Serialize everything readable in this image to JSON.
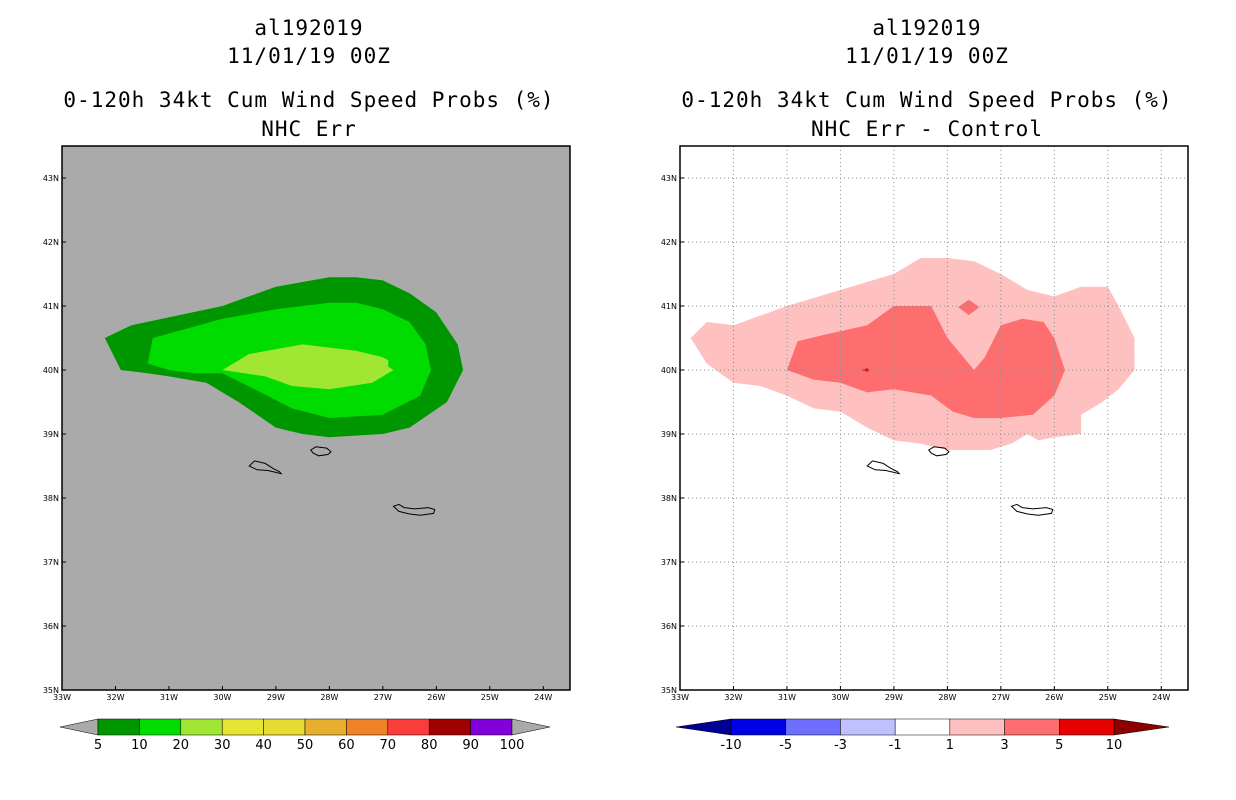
{
  "chart_data": [
    {
      "type": "heatmap",
      "title_lines": [
        "al192019",
        "11/01/19 00Z",
        "0-120h 34kt Cum Wind Speed Probs (%)",
        "NHC Err"
      ],
      "xlabel": "",
      "ylabel": "",
      "xlim": [
        -33,
        -23.5
      ],
      "ylim": [
        35,
        43.5
      ],
      "x_ticks": [
        -33,
        -32,
        -31,
        -30,
        -29,
        -28,
        -27,
        -26,
        -25,
        -24
      ],
      "x_tick_labels": [
        "33W",
        "32W",
        "31W",
        "30W",
        "29W",
        "28W",
        "27W",
        "26W",
        "25W",
        "24W"
      ],
      "y_ticks": [
        35,
        36,
        37,
        38,
        39,
        40,
        41,
        42,
        43
      ],
      "y_tick_labels": [
        "35N",
        "36N",
        "37N",
        "38N",
        "39N",
        "40N",
        "41N",
        "42N",
        "43N"
      ],
      "grid": false,
      "background_color": "#aaaaaa",
      "levels": [
        {
          "threshold": 5,
          "color": "#009600",
          "polygon": [
            [
              -32.2,
              40.5
            ],
            [
              -31.7,
              40.7
            ],
            [
              -30.0,
              41.0
            ],
            [
              -29.0,
              41.3
            ],
            [
              -28.0,
              41.45
            ],
            [
              -27.5,
              41.45
            ],
            [
              -27.0,
              41.4
            ],
            [
              -26.5,
              41.2
            ],
            [
              -26.0,
              40.9
            ],
            [
              -25.6,
              40.4
            ],
            [
              -25.5,
              40.0
            ],
            [
              -25.8,
              39.5
            ],
            [
              -26.5,
              39.1
            ],
            [
              -27.0,
              39.0
            ],
            [
              -28.0,
              38.95
            ],
            [
              -28.5,
              39.0
            ],
            [
              -29.0,
              39.1
            ],
            [
              -29.7,
              39.5
            ],
            [
              -30.3,
              39.8
            ],
            [
              -31.0,
              39.9
            ],
            [
              -31.4,
              39.95
            ],
            [
              -31.9,
              40.0
            ],
            [
              -32.2,
              40.5
            ]
          ]
        },
        {
          "threshold": 10,
          "color": "#00dc00",
          "polygon": [
            [
              -31.3,
              40.5
            ],
            [
              -30.0,
              40.8
            ],
            [
              -29.0,
              40.95
            ],
            [
              -28.0,
              41.05
            ],
            [
              -27.5,
              41.05
            ],
            [
              -27.0,
              40.95
            ],
            [
              -26.5,
              40.75
            ],
            [
              -26.2,
              40.4
            ],
            [
              -26.1,
              40.0
            ],
            [
              -26.3,
              39.6
            ],
            [
              -27.0,
              39.3
            ],
            [
              -28.0,
              39.25
            ],
            [
              -28.7,
              39.4
            ],
            [
              -29.4,
              39.7
            ],
            [
              -30.0,
              39.95
            ],
            [
              -30.5,
              39.95
            ],
            [
              -31.0,
              40.0
            ],
            [
              -31.4,
              40.1
            ],
            [
              -31.3,
              40.5
            ]
          ]
        },
        {
          "threshold": 20,
          "color": "#a0e632",
          "polygon": [
            [
              -30.0,
              40.0
            ],
            [
              -29.5,
              40.25
            ],
            [
              -28.5,
              40.4
            ],
            [
              -27.5,
              40.3
            ],
            [
              -27.0,
              40.2
            ],
            [
              -26.9,
              40.15
            ],
            [
              -26.9,
              40.05
            ],
            [
              -26.8,
              40.0
            ],
            [
              -27.2,
              39.8
            ],
            [
              -28.0,
              39.7
            ],
            [
              -28.7,
              39.75
            ],
            [
              -29.2,
              39.9
            ],
            [
              -30.0,
              40.0
            ]
          ]
        }
      ],
      "islands": [
        {
          "name": "",
          "outline": [
            [
              -29.5,
              38.5
            ],
            [
              -29.4,
              38.58
            ],
            [
              -29.2,
              38.54
            ],
            [
              -29.05,
              38.46
            ],
            [
              -28.93,
              38.41
            ],
            [
              -28.9,
              38.38
            ],
            [
              -29.0,
              38.4
            ],
            [
              -29.15,
              38.43
            ],
            [
              -29.35,
              38.44
            ],
            [
              -29.5,
              38.5
            ]
          ]
        },
        {
          "name": "",
          "outline": [
            [
              -28.35,
              38.75
            ],
            [
              -28.25,
              38.8
            ],
            [
              -28.05,
              38.78
            ],
            [
              -27.97,
              38.72
            ],
            [
              -28.03,
              38.68
            ],
            [
              -28.2,
              38.66
            ],
            [
              -28.3,
              38.7
            ],
            [
              -28.35,
              38.75
            ]
          ]
        },
        {
          "name": "",
          "outline": [
            [
              -26.8,
              37.87
            ],
            [
              -26.7,
              37.9
            ],
            [
              -26.6,
              37.85
            ],
            [
              -26.4,
              37.83
            ],
            [
              -26.15,
              37.85
            ],
            [
              -26.03,
              37.82
            ],
            [
              -26.05,
              37.76
            ],
            [
              -26.3,
              37.73
            ],
            [
              -26.5,
              37.75
            ],
            [
              -26.7,
              37.79
            ],
            [
              -26.8,
              37.87
            ]
          ]
        }
      ],
      "colorbar": {
        "labels": [
          "5",
          "10",
          "20",
          "30",
          "40",
          "50",
          "60",
          "70",
          "80",
          "90",
          "100"
        ],
        "colors": [
          "#009600",
          "#00dc00",
          "#a0e632",
          "#e6e632",
          "#e6dc32",
          "#e6af2d",
          "#f08228",
          "#fa3c3c",
          "#a00000",
          "#8200dc"
        ],
        "under_color": "#aaaaaa",
        "over_color": "#aaaaaa"
      }
    },
    {
      "type": "heatmap",
      "title_lines": [
        "al192019",
        "11/01/19 00Z",
        "0-120h 34kt Cum Wind Speed Probs (%)",
        "NHC Err - Control"
      ],
      "xlabel": "",
      "ylabel": "",
      "xlim": [
        -33,
        -23.5
      ],
      "ylim": [
        35,
        43.5
      ],
      "x_ticks": [
        -33,
        -32,
        -31,
        -30,
        -29,
        -28,
        -27,
        -26,
        -25,
        -24
      ],
      "x_tick_labels": [
        "33W",
        "32W",
        "31W",
        "30W",
        "29W",
        "28W",
        "27W",
        "26W",
        "25W",
        "24W"
      ],
      "y_ticks": [
        35,
        36,
        37,
        38,
        39,
        40,
        41,
        42,
        43
      ],
      "y_tick_labels": [
        "35N",
        "36N",
        "37N",
        "38N",
        "39N",
        "40N",
        "41N",
        "42N",
        "43N"
      ],
      "grid": true,
      "background_color": "#ffffff",
      "levels": [
        {
          "threshold": 1,
          "color": "#ffc0c0",
          "polygon": [
            [
              -32.8,
              40.5
            ],
            [
              -32.5,
              40.75
            ],
            [
              -32.0,
              40.7
            ],
            [
              -31.0,
              41.0
            ],
            [
              -30.0,
              41.25
            ],
            [
              -29.0,
              41.5
            ],
            [
              -28.5,
              41.75
            ],
            [
              -28.0,
              41.75
            ],
            [
              -27.5,
              41.7
            ],
            [
              -27.0,
              41.5
            ],
            [
              -26.5,
              41.25
            ],
            [
              -26.0,
              41.15
            ],
            [
              -25.5,
              41.3
            ],
            [
              -25.0,
              41.3
            ],
            [
              -24.8,
              41.0
            ],
            [
              -24.5,
              40.5
            ],
            [
              -24.5,
              40.0
            ],
            [
              -24.8,
              39.7
            ],
            [
              -25.1,
              39.5
            ],
            [
              -25.5,
              39.3
            ],
            [
              -25.5,
              39.0
            ],
            [
              -26.0,
              38.95
            ],
            [
              -26.3,
              38.9
            ],
            [
              -26.5,
              39.0
            ],
            [
              -26.8,
              38.85
            ],
            [
              -27.2,
              38.75
            ],
            [
              -28.0,
              38.75
            ],
            [
              -28.5,
              38.85
            ],
            [
              -29.0,
              38.9
            ],
            [
              -29.5,
              39.1
            ],
            [
              -30.0,
              39.35
            ],
            [
              -30.5,
              39.4
            ],
            [
              -31.0,
              39.6
            ],
            [
              -31.5,
              39.75
            ],
            [
              -32.0,
              39.8
            ],
            [
              -32.5,
              40.1
            ],
            [
              -32.8,
              40.5
            ]
          ]
        },
        {
          "threshold": 3,
          "color": "#ff6e6e",
          "polygon": [
            [
              -31.0,
              40.0
            ],
            [
              -30.8,
              40.45
            ],
            [
              -30.3,
              40.55
            ],
            [
              -29.5,
              40.7
            ],
            [
              -29.0,
              41.0
            ],
            [
              -28.3,
              41.0
            ],
            [
              -28.0,
              40.5
            ],
            [
              -27.5,
              40.0
            ],
            [
              -27.3,
              40.2
            ],
            [
              -27.0,
              40.7
            ],
            [
              -26.6,
              40.8
            ],
            [
              -26.2,
              40.75
            ],
            [
              -26.0,
              40.5
            ],
            [
              -25.8,
              40.0
            ],
            [
              -26.0,
              39.6
            ],
            [
              -26.4,
              39.3
            ],
            [
              -27.0,
              39.25
            ],
            [
              -27.5,
              39.25
            ],
            [
              -27.9,
              39.35
            ],
            [
              -28.3,
              39.6
            ],
            [
              -29.0,
              39.7
            ],
            [
              -29.5,
              39.65
            ],
            [
              -30.0,
              39.8
            ],
            [
              -30.5,
              39.85
            ],
            [
              -31.0,
              40.0
            ]
          ]
        },
        {
          "threshold": 3,
          "color": "#ff6e6e",
          "polygon": [
            [
              -27.8,
              40.98
            ],
            [
              -27.6,
              41.1
            ],
            [
              -27.4,
              40.98
            ],
            [
              -27.6,
              40.86
            ],
            [
              -27.8,
              40.98
            ]
          ]
        },
        {
          "threshold": 5,
          "color": "#e61414",
          "polygon": [
            [
              -29.6,
              40.0
            ],
            [
              -29.5,
              40.03
            ],
            [
              -29.45,
              40.0
            ],
            [
              -29.5,
              39.97
            ],
            [
              -29.6,
              40.0
            ]
          ]
        }
      ],
      "islands": [
        {
          "name": "",
          "outline": [
            [
              -29.5,
              38.5
            ],
            [
              -29.4,
              38.58
            ],
            [
              -29.2,
              38.54
            ],
            [
              -29.05,
              38.46
            ],
            [
              -28.93,
              38.41
            ],
            [
              -28.9,
              38.38
            ],
            [
              -29.0,
              38.4
            ],
            [
              -29.15,
              38.43
            ],
            [
              -29.35,
              38.44
            ],
            [
              -29.5,
              38.5
            ]
          ]
        },
        {
          "name": "",
          "outline": [
            [
              -28.35,
              38.75
            ],
            [
              -28.25,
              38.8
            ],
            [
              -28.05,
              38.78
            ],
            [
              -27.97,
              38.72
            ],
            [
              -28.03,
              38.68
            ],
            [
              -28.2,
              38.66
            ],
            [
              -28.3,
              38.7
            ],
            [
              -28.35,
              38.75
            ]
          ]
        },
        {
          "name": "",
          "outline": [
            [
              -26.8,
              37.87
            ],
            [
              -26.7,
              37.9
            ],
            [
              -26.6,
              37.85
            ],
            [
              -26.4,
              37.83
            ],
            [
              -26.15,
              37.85
            ],
            [
              -26.03,
              37.82
            ],
            [
              -26.05,
              37.76
            ],
            [
              -26.3,
              37.73
            ],
            [
              -26.5,
              37.75
            ],
            [
              -26.7,
              37.79
            ],
            [
              -26.8,
              37.87
            ]
          ]
        }
      ],
      "colorbar": {
        "labels": [
          "-10",
          "-5",
          "-3",
          "-1",
          "1",
          "3",
          "5",
          "10"
        ],
        "colors": [
          "#0000e6",
          "#6e6eff",
          "#c0c0ff",
          "#ffffff",
          "#ffc0c0",
          "#ff6e6e",
          "#e60000"
        ],
        "under_color": "#000096",
        "over_color": "#8c0000"
      }
    }
  ]
}
